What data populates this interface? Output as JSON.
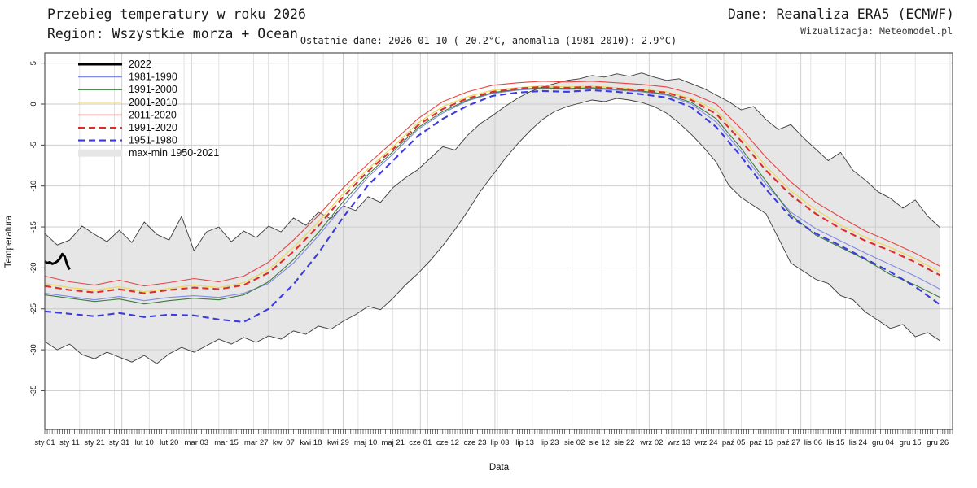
{
  "header": {
    "title_line1": "Przebieg temperatury w roku 2026",
    "title_line2": "Region: Wszystkie morza + Ocean",
    "source": "Dane: Reanaliza ERA5 (ECMWF)",
    "visualization": "Wizualizacja: Meteomodel.pl",
    "subtitle": "Ostatnie dane: 2026-01-10 (-20.2°C, anomalia (1981-2010): 2.9°C)"
  },
  "chart_data": {
    "type": "line",
    "title": "Przebieg temperatury w roku 2026",
    "xlabel": "Data",
    "ylabel": "Temperatura",
    "ylim": [
      -39.5,
      6.2
    ],
    "x_unit": "day_of_year",
    "yticks": [
      5,
      0,
      -5,
      -10,
      -15,
      -20,
      -25,
      -30,
      -35
    ],
    "xticks": [
      {
        "label": "sty 01",
        "day": 0
      },
      {
        "label": "sty 11",
        "day": 10
      },
      {
        "label": "sty 21",
        "day": 20
      },
      {
        "label": "sty 31",
        "day": 30
      },
      {
        "label": "lut 10",
        "day": 40
      },
      {
        "label": "lut 20",
        "day": 50
      },
      {
        "label": "mar 03",
        "day": 61
      },
      {
        "label": "mar 15",
        "day": 73
      },
      {
        "label": "mar 27",
        "day": 85
      },
      {
        "label": "kwi 07",
        "day": 96
      },
      {
        "label": "kwi 18",
        "day": 107
      },
      {
        "label": "kwi 29",
        "day": 118
      },
      {
        "label": "maj 10",
        "day": 129
      },
      {
        "label": "maj 21",
        "day": 140
      },
      {
        "label": "cze 01",
        "day": 151
      },
      {
        "label": "cze 12",
        "day": 162
      },
      {
        "label": "cze 23",
        "day": 173
      },
      {
        "label": "lip 03",
        "day": 183
      },
      {
        "label": "lip 13",
        "day": 193
      },
      {
        "label": "lip 23",
        "day": 203
      },
      {
        "label": "sie 02",
        "day": 213
      },
      {
        "label": "sie 12",
        "day": 223
      },
      {
        "label": "sie 22",
        "day": 233
      },
      {
        "label": "wrz 02",
        "day": 244
      },
      {
        "label": "wrz 13",
        "day": 255
      },
      {
        "label": "wrz 24",
        "day": 266
      },
      {
        "label": "paź 05",
        "day": 277
      },
      {
        "label": "paź 16",
        "day": 288
      },
      {
        "label": "paź 27",
        "day": 299
      },
      {
        "label": "lis 06",
        "day": 309
      },
      {
        "label": "lis 15",
        "day": 318
      },
      {
        "label": "lis 24",
        "day": 327
      },
      {
        "label": "gru 04",
        "day": 337
      },
      {
        "label": "gru 15",
        "day": 348
      },
      {
        "label": "gru 26",
        "day": 359
      }
    ],
    "month_gridline_days": [
      31,
      59,
      90,
      120,
      151,
      181,
      212,
      243,
      273,
      304,
      334
    ],
    "minor_gridline_step_days": 14,
    "legend_position": "top-left",
    "band": {
      "name": "max-min 1950-2021",
      "fill_color": "#e6e6e6",
      "edge_color": "#3a3a3a",
      "x_start": 0,
      "x_step": 5,
      "upper": [
        -15.8,
        -17.2,
        -16.6,
        -14.9,
        -15.9,
        -16.8,
        -15.4,
        -16.9,
        -14.4,
        -15.9,
        -16.6,
        -13.7,
        -17.9,
        -15.6,
        -15.0,
        -16.8,
        -15.5,
        -16.3,
        -14.9,
        -15.6,
        -13.9,
        -14.8,
        -13.2,
        -14.0,
        -12.4,
        -13.0,
        -11.3,
        -12.0,
        -10.2,
        -9.0,
        -8.0,
        -6.6,
        -5.2,
        -5.6,
        -3.8,
        -2.4,
        -1.4,
        -0.3,
        0.7,
        1.5,
        2.1,
        2.5,
        2.9,
        3.1,
        3.5,
        3.3,
        3.7,
        3.4,
        3.8,
        3.3,
        2.9,
        3.1,
        2.5,
        1.9,
        1.1,
        0.3,
        -0.7,
        -0.3,
        -1.9,
        -3.1,
        -2.5,
        -4.1,
        -5.5,
        -6.9,
        -5.9,
        -8.1,
        -9.3,
        -10.7,
        -11.5,
        -12.7,
        -11.7,
        -13.7,
        -15.1
      ],
      "lower": [
        -29.0,
        -30.0,
        -29.3,
        -30.6,
        -31.1,
        -30.3,
        -30.9,
        -31.5,
        -30.7,
        -31.7,
        -30.5,
        -29.7,
        -30.3,
        -29.5,
        -28.7,
        -29.3,
        -28.5,
        -29.1,
        -28.3,
        -28.7,
        -27.7,
        -28.1,
        -27.1,
        -27.5,
        -26.5,
        -25.7,
        -24.7,
        -25.1,
        -23.7,
        -22.1,
        -20.7,
        -19.1,
        -17.3,
        -15.3,
        -13.1,
        -10.7,
        -8.7,
        -6.7,
        -4.9,
        -3.3,
        -1.9,
        -0.9,
        -0.3,
        0.1,
        0.5,
        0.3,
        0.7,
        0.5,
        0.2,
        -0.3,
        -1.1,
        -2.3,
        -3.7,
        -5.3,
        -7.1,
        -9.9,
        -11.4,
        -12.4,
        -13.4,
        -16.4,
        -19.4,
        -20.4,
        -21.4,
        -21.9,
        -23.4,
        -23.9,
        -25.4,
        -26.4,
        -27.4,
        -26.9,
        -28.4,
        -27.9,
        -28.9
      ]
    },
    "series": [
      {
        "name": "1981-1990",
        "color": "#8289e8",
        "dash": null,
        "width": 1.1,
        "x_start": 0,
        "x_step": 10,
        "values": [
          -23.1,
          -23.5,
          -23.9,
          -23.5,
          -24.0,
          -23.6,
          -23.4,
          -23.6,
          -23.1,
          -21.9,
          -19.4,
          -16.1,
          -12.4,
          -8.9,
          -6.1,
          -3.1,
          -1.1,
          0.4,
          1.3,
          1.7,
          1.9,
          1.8,
          1.9,
          1.7,
          1.5,
          1.1,
          0.0,
          -2.2,
          -5.8,
          -9.8,
          -13.2,
          -15.2,
          -16.7,
          -18.2,
          -19.6,
          -21.0,
          -22.6
        ]
      },
      {
        "name": "1991-2000",
        "color": "#3c7c3c",
        "dash": null,
        "width": 1.1,
        "x_start": 0,
        "x_step": 10,
        "values": [
          -23.3,
          -23.7,
          -24.1,
          -23.8,
          -24.4,
          -24.0,
          -23.7,
          -23.9,
          -23.3,
          -21.7,
          -19.0,
          -15.7,
          -11.9,
          -8.6,
          -5.8,
          -2.9,
          -0.9,
          0.5,
          1.4,
          1.8,
          2.0,
          1.9,
          2.0,
          1.8,
          1.6,
          1.2,
          0.2,
          -1.8,
          -5.4,
          -9.4,
          -13.5,
          -16.0,
          -17.5,
          -19.0,
          -20.8,
          -22.1,
          -23.6
        ]
      },
      {
        "name": "2001-2010",
        "color": "#ecd95f",
        "dash": null,
        "width": 1.3,
        "x_start": 0,
        "x_step": 10,
        "values": [
          -21.9,
          -22.4,
          -22.7,
          -22.3,
          -22.9,
          -22.5,
          -22.1,
          -22.4,
          -21.8,
          -20.2,
          -17.5,
          -14.4,
          -10.9,
          -7.9,
          -5.2,
          -2.3,
          -0.3,
          0.9,
          1.7,
          2.0,
          2.2,
          2.1,
          2.2,
          2.0,
          1.8,
          1.5,
          0.7,
          -0.8,
          -4.0,
          -7.6,
          -10.6,
          -12.9,
          -14.8,
          -16.3,
          -17.5,
          -18.9,
          -20.5
        ]
      },
      {
        "name": "2011-2020",
        "color": "#e64545",
        "dash": null,
        "width": 1.1,
        "x_start": 0,
        "x_step": 10,
        "values": [
          -21.0,
          -21.7,
          -22.1,
          -21.5,
          -22.2,
          -21.8,
          -21.3,
          -21.7,
          -21.0,
          -19.3,
          -16.6,
          -13.6,
          -10.2,
          -7.3,
          -4.6,
          -1.8,
          0.3,
          1.5,
          2.3,
          2.6,
          2.8,
          2.7,
          2.8,
          2.6,
          2.4,
          2.1,
          1.3,
          0.0,
          -3.0,
          -6.5,
          -9.5,
          -12.0,
          -13.8,
          -15.5,
          -16.8,
          -18.2,
          -19.8
        ]
      },
      {
        "name": "1991-2020",
        "color": "#dd2c2c",
        "dash": "8 5",
        "width": 2.1,
        "x_start": 0,
        "x_step": 10,
        "values": [
          -22.2,
          -22.7,
          -23.0,
          -22.6,
          -23.1,
          -22.7,
          -22.4,
          -22.6,
          -22.1,
          -20.6,
          -18.0,
          -14.9,
          -11.3,
          -8.2,
          -5.5,
          -2.6,
          -0.6,
          0.7,
          1.5,
          1.9,
          2.1,
          2.0,
          2.1,
          1.9,
          1.7,
          1.4,
          0.5,
          -1.2,
          -4.5,
          -8.1,
          -11.1,
          -13.4,
          -15.2,
          -16.7,
          -17.9,
          -19.3,
          -20.9
        ]
      },
      {
        "name": "1951-1980",
        "color": "#3c3cdc",
        "dash": "8 5",
        "width": 2.1,
        "x_start": 0,
        "x_step": 10,
        "values": [
          -25.3,
          -25.6,
          -25.9,
          -25.5,
          -26.0,
          -25.7,
          -25.8,
          -26.3,
          -26.6,
          -25.0,
          -22.0,
          -18.2,
          -13.8,
          -9.9,
          -6.9,
          -3.9,
          -1.8,
          -0.2,
          1.0,
          1.4,
          1.6,
          1.5,
          1.7,
          1.5,
          1.2,
          0.8,
          -0.4,
          -2.8,
          -6.4,
          -10.4,
          -13.8,
          -15.8,
          -17.3,
          -18.9,
          -20.5,
          -22.3,
          -24.5
        ]
      },
      {
        "name": "2022",
        "color": "#000000",
        "dash": null,
        "width": 2.9,
        "x_start": 0,
        "x_step": 1,
        "values": [
          -19.2,
          -19.4,
          -19.3,
          -19.5,
          -19.4,
          -19.2,
          -18.9,
          -18.3,
          -18.6,
          -19.6,
          -20.2
        ]
      }
    ],
    "legend_items_order": [
      "2022",
      "1981-1990",
      "1991-2000",
      "2001-2010",
      "2011-2020",
      "1991-2020",
      "1951-1980",
      "max-min 1950-2021"
    ]
  }
}
